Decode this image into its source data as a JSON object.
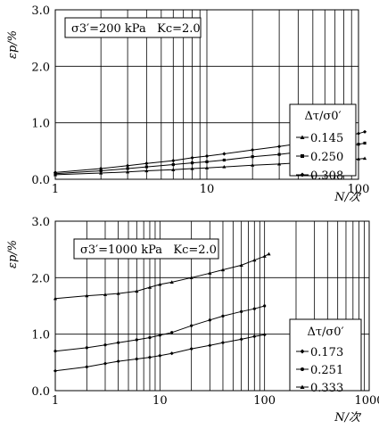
{
  "colors": {
    "axes": "#000000",
    "grid": "#000000",
    "series": "#000000"
  },
  "chart_data": [
    {
      "type": "line",
      "x_scale": "log",
      "xlim": [
        1,
        100
      ],
      "ylim": [
        0,
        3
      ],
      "x_ticks": [
        1,
        10,
        100
      ],
      "x_tick_labels": [
        "1",
        "10",
        "100"
      ],
      "y_ticks": [
        0,
        1,
        2,
        3
      ],
      "y_tick_labels": [
        "0.0",
        "1.0",
        "2.0",
        "3.0"
      ],
      "xlabel": "N/次",
      "ylabel": "εp/%",
      "grid": true,
      "annotation": "σ3′=200 kPa   Kc=2.0",
      "legend": {
        "title": "Δτ/σ0′",
        "position": "right"
      },
      "series": [
        {
          "name": "0.145",
          "marker": "triangle",
          "x": [
            1,
            2,
            3,
            4,
            6,
            8,
            10,
            13,
            20,
            30,
            40,
            60,
            80,
            100,
            110
          ],
          "y": [
            0.08,
            0.11,
            0.13,
            0.15,
            0.17,
            0.19,
            0.2,
            0.22,
            0.25,
            0.27,
            0.29,
            0.32,
            0.34,
            0.36,
            0.37
          ]
        },
        {
          "name": "0.250",
          "marker": "square",
          "x": [
            1,
            2,
            3,
            4,
            6,
            8,
            10,
            13,
            20,
            30,
            40,
            60,
            80,
            100,
            110
          ],
          "y": [
            0.1,
            0.15,
            0.19,
            0.22,
            0.26,
            0.29,
            0.31,
            0.34,
            0.4,
            0.44,
            0.48,
            0.53,
            0.58,
            0.62,
            0.64
          ]
        },
        {
          "name": "0.308",
          "marker": "diamond",
          "x": [
            1,
            2,
            3,
            4,
            6,
            8,
            10,
            13,
            20,
            30,
            40,
            60,
            80,
            100,
            110
          ],
          "y": [
            0.12,
            0.19,
            0.24,
            0.28,
            0.33,
            0.38,
            0.41,
            0.45,
            0.52,
            0.58,
            0.63,
            0.7,
            0.76,
            0.81,
            0.84
          ]
        }
      ]
    },
    {
      "type": "line",
      "x_scale": "log",
      "xlim": [
        1,
        1000
      ],
      "ylim": [
        0,
        3
      ],
      "x_ticks": [
        1,
        10,
        100,
        1000
      ],
      "x_tick_labels": [
        "1",
        "10",
        "100",
        "1000"
      ],
      "y_ticks": [
        0,
        1,
        2,
        3
      ],
      "y_tick_labels": [
        "0.0",
        "1.0",
        "2.0",
        "3.0"
      ],
      "xlabel": "N/次",
      "ylabel": "εp/%",
      "grid": true,
      "annotation": "σ3′=1000 kPa   Kc=2.0",
      "legend": {
        "title": "Δτ/σ0′",
        "position": "bottom-right"
      },
      "series": [
        {
          "name": "0.173",
          "marker": "diamond",
          "x": [
            1,
            2,
            3,
            4,
            6,
            8,
            10,
            13,
            20,
            30,
            40,
            60,
            80,
            100
          ],
          "y": [
            0.35,
            0.42,
            0.48,
            0.52,
            0.56,
            0.59,
            0.62,
            0.66,
            0.74,
            0.8,
            0.85,
            0.91,
            0.96,
            0.99
          ]
        },
        {
          "name": "0.251",
          "marker": "circle",
          "x": [
            1,
            2,
            3,
            4,
            6,
            8,
            10,
            13,
            20,
            30,
            40,
            60,
            80,
            100
          ],
          "y": [
            0.7,
            0.76,
            0.81,
            0.85,
            0.9,
            0.94,
            0.98,
            1.03,
            1.15,
            1.25,
            1.32,
            1.4,
            1.45,
            1.5
          ]
        },
        {
          "name": "0.333",
          "marker": "triangle",
          "x": [
            1,
            2,
            3,
            4,
            6,
            8,
            10,
            13,
            20,
            30,
            40,
            60,
            80,
            100,
            110
          ],
          "y": [
            1.63,
            1.68,
            1.7,
            1.72,
            1.76,
            1.83,
            1.88,
            1.92,
            2.0,
            2.08,
            2.14,
            2.22,
            2.31,
            2.38,
            2.42
          ]
        }
      ]
    }
  ]
}
